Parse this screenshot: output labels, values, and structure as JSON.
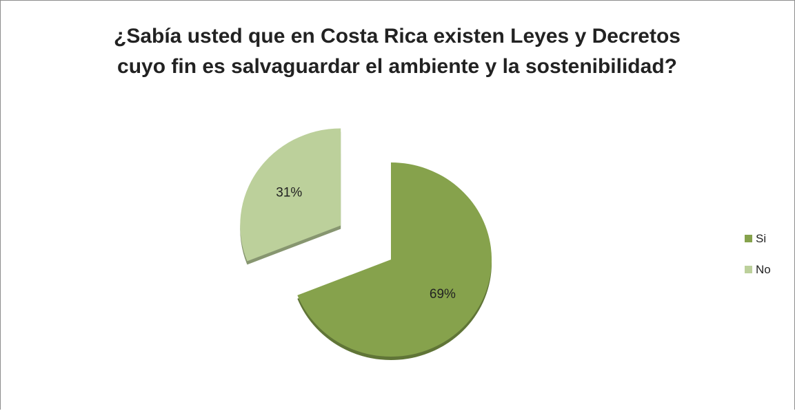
{
  "chart_data": {
    "type": "pie",
    "title_lines": [
      "¿Sabía usted que en Costa Rica existen Leyes y Decretos",
      "cuyo fin es salvaguardar el ambiente y la sostenibilidad?"
    ],
    "slices": [
      {
        "name": "Si",
        "value": 69,
        "label": "69%",
        "color": "#86a24c"
      },
      {
        "name": "No",
        "value": 31,
        "label": "31%",
        "color": "#bcd09b"
      }
    ],
    "exploded_slice": "No",
    "legend_position": "right"
  }
}
